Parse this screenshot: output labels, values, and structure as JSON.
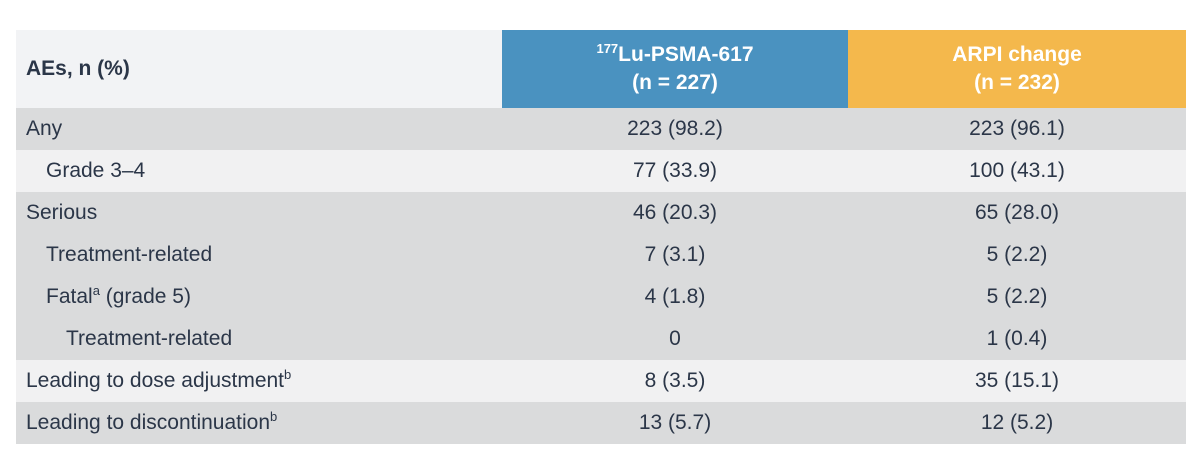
{
  "table": {
    "header": {
      "label": "AEs, n (%)",
      "columns": [
        {
          "sup": "177",
          "name": "Lu-PSMA-617",
          "n": "(n = 227)"
        },
        {
          "name": "ARPI change",
          "n": "(n = 232)"
        }
      ]
    },
    "rows": [
      {
        "label": "Any",
        "values": [
          "223 (98.2)",
          "223 (96.1)"
        ]
      },
      {
        "label": "Grade 3–4",
        "values": [
          "77 (33.9)",
          "100 (43.1)"
        ]
      },
      {
        "label": "Serious",
        "values": [
          "46 (20.3)",
          "65 (28.0)"
        ]
      },
      {
        "label": "Treatment-related",
        "values": [
          "7 (3.1)",
          "5 (2.2)"
        ]
      },
      {
        "label": "Fatal",
        "sup": "a",
        "suffix": " (grade 5)",
        "values": [
          "4 (1.8)",
          "5 (2.2)"
        ]
      },
      {
        "label": "Treatment-related",
        "values": [
          "0",
          "1 (0.4)"
        ]
      },
      {
        "label": "Leading to dose adjustment",
        "sup": "b",
        "values": [
          "8 (3.5)",
          "35 (15.1)"
        ]
      },
      {
        "label": "Leading to discontinuation",
        "sup": "b",
        "values": [
          "13 (5.7)",
          "12 (5.2)"
        ]
      }
    ]
  }
}
